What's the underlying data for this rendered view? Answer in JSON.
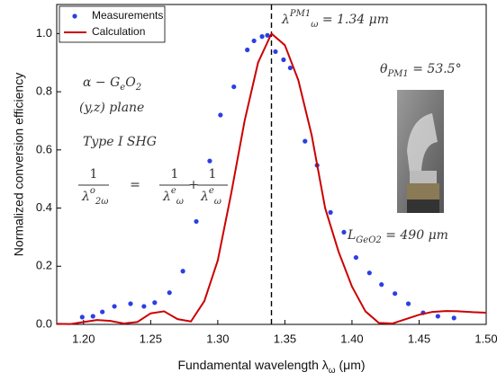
{
  "chart_data": {
    "type": "line",
    "x_label": [
      {
        "text": "Fundamental wavelength λ"
      },
      {
        "text": "ω",
        "pos": "sub"
      },
      {
        "text": " (μm)"
      }
    ],
    "y_label": "Normalized conversion efficiency",
    "xlim": [
      1.18,
      1.5
    ],
    "ylim": [
      0,
      1.1
    ],
    "xticks": [
      {
        "value": 1.2,
        "label": "1.20"
      },
      1.25,
      {
        "value": 1.3,
        "label": "1.30"
      },
      1.35,
      {
        "value": 1.4,
        "label": "1.40"
      },
      1.45,
      {
        "value": 1.5,
        "label": "1.50"
      }
    ],
    "yticks": [
      {
        "value": 0,
        "label": "0.0"
      },
      0.2,
      0.4,
      0.6,
      0.8,
      {
        "value": 1,
        "label": "1.0"
      }
    ],
    "legend": "upper left",
    "vline": 1.34,
    "series": [
      {
        "name": "Measurements",
        "color": "#2b3fe3",
        "style": "dots",
        "x": [
          1.199,
          1.207,
          1.214,
          1.223,
          1.235,
          1.245,
          1.253,
          1.264,
          1.274,
          1.284,
          1.294,
          1.302,
          1.312,
          1.322,
          1.327,
          1.333,
          1.337,
          1.343,
          1.349,
          1.354,
          1.365,
          1.374,
          1.384,
          1.394,
          1.403,
          1.413,
          1.422,
          1.432,
          1.442,
          1.453,
          1.464,
          1.476
        ],
        "values": [
          0.025,
          0.028,
          0.043,
          0.062,
          0.071,
          0.062,
          0.075,
          0.109,
          0.183,
          0.354,
          0.562,
          0.72,
          0.817,
          0.944,
          0.975,
          0.99,
          0.994,
          0.938,
          0.91,
          0.882,
          0.63,
          0.547,
          0.385,
          0.317,
          0.23,
          0.177,
          0.137,
          0.106,
          0.071,
          0.04,
          0.028,
          0.022
        ]
      },
      {
        "name": "Calculation",
        "color": "#cc0000",
        "style": "line",
        "x": [
          1.18,
          1.19,
          1.2,
          1.21,
          1.22,
          1.23,
          1.24,
          1.25,
          1.26,
          1.27,
          1.28,
          1.29,
          1.3,
          1.31,
          1.32,
          1.33,
          1.34,
          1.35,
          1.36,
          1.37,
          1.38,
          1.39,
          1.4,
          1.41,
          1.42,
          1.43,
          1.44,
          1.45,
          1.46,
          1.47,
          1.48,
          1.49,
          1.5
        ],
        "values": [
          0.002,
          0.001,
          0.008,
          0.015,
          0.012,
          0.003,
          0.008,
          0.038,
          0.045,
          0.018,
          0.01,
          0.08,
          0.22,
          0.45,
          0.7,
          0.9,
          1.0,
          0.96,
          0.84,
          0.65,
          0.4,
          0.25,
          0.13,
          0.045,
          0.005,
          0.003,
          0.018,
          0.033,
          0.043,
          0.046,
          0.045,
          0.042,
          0.04
        ]
      }
    ],
    "annotations": [
      {
        "segments": [
          {
            "text": "λ"
          },
          {
            "text": "PM1",
            "pos": "sup"
          },
          {
            "text": "ω",
            "pos": "sub"
          },
          {
            "text": " = 1.34 μm"
          }
        ]
      },
      {
        "segments": [
          {
            "text": "α − G"
          },
          {
            "text": "e",
            "pos": "sub"
          },
          {
            "text": "O"
          },
          {
            "text": "2",
            "pos": "sub"
          }
        ]
      },
      {
        "segments": [
          {
            "text": "(y,z) plane"
          }
        ]
      },
      {
        "segments": [
          {
            "text": "Type I SHG"
          }
        ]
      },
      {
        "segments": [
          {
            "text": "θ"
          },
          {
            "text": "PM1",
            "pos": "sub"
          },
          {
            "text": " = 53.5°"
          }
        ]
      },
      {
        "segments": [
          {
            "text": "L"
          },
          {
            "text": "GeO2",
            "pos": "sub"
          },
          {
            "text": " = 490 μm"
          }
        ]
      }
    ],
    "equation": {
      "fractions": [
        {
          "numerator": "1",
          "denominator": [
            {
              "text": "λ"
            },
            {
              "text": "o",
              "pos": "sup"
            },
            {
              "text": "2ω",
              "pos": "sub"
            }
          ]
        },
        {
          "numerator": "1",
          "denominator": [
            {
              "text": "λ"
            },
            {
              "text": "e",
              "pos": "sup"
            },
            {
              "text": "ω",
              "pos": "sub"
            }
          ]
        },
        {
          "numerator": "1",
          "denominator": [
            {
              "text": "λ"
            },
            {
              "text": "e",
              "pos": "sup"
            },
            {
              "text": "ω",
              "pos": "sub"
            }
          ]
        }
      ],
      "operators": [
        "=",
        "+"
      ]
    }
  }
}
